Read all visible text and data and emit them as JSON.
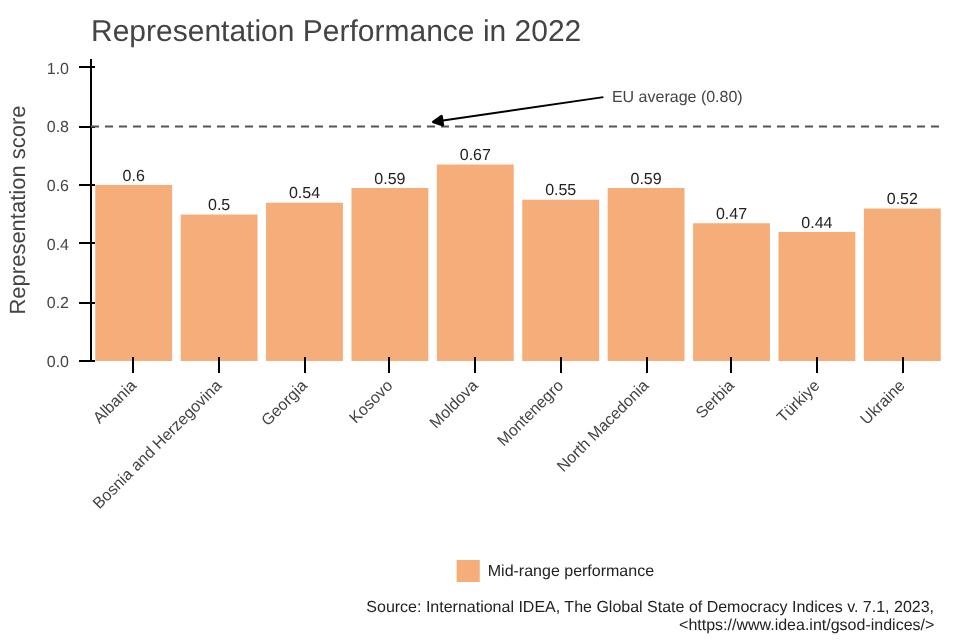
{
  "chart_data": {
    "type": "bar",
    "title": "Representation Performance in 2022",
    "ylabel": "Representation score",
    "categories": [
      "Albania",
      "Bosnia and Herzegovina",
      "Georgia",
      "Kosovo",
      "Moldova",
      "Montenegro",
      "North Macedonia",
      "Serbia",
      "Türkiye",
      "Ukraine"
    ],
    "series": [
      {
        "name": "Mid-range performance",
        "color": "#f5ad79",
        "values": [
          0.6,
          0.5,
          0.54,
          0.59,
          0.67,
          0.55,
          0.59,
          0.47,
          0.44,
          0.52
        ]
      }
    ],
    "ylim": [
      0,
      1.03
    ],
    "yticks": [
      {
        "value": 0,
        "label": "0.0"
      },
      {
        "value": 0.2,
        "label": "0.2"
      },
      {
        "value": 0.4,
        "label": "0.4"
      },
      {
        "value": 0.6,
        "label": "0.6"
      },
      {
        "value": 0.8,
        "label": "0.8"
      },
      {
        "value": 1,
        "label": "1.0"
      }
    ],
    "ref_lines": [
      {
        "axis": "y",
        "value": 0.8,
        "label": "EU average (0.80)",
        "color": "#555555",
        "line_style": "dashed"
      }
    ],
    "data_labels": true,
    "grid": false,
    "legend": "bottom",
    "annotations": [
      "Source: International IDEA, The Global State of Democracy Indices v. 7.1, 2023,",
      "<https://www.idea.int/gsod-indices/>"
    ]
  }
}
